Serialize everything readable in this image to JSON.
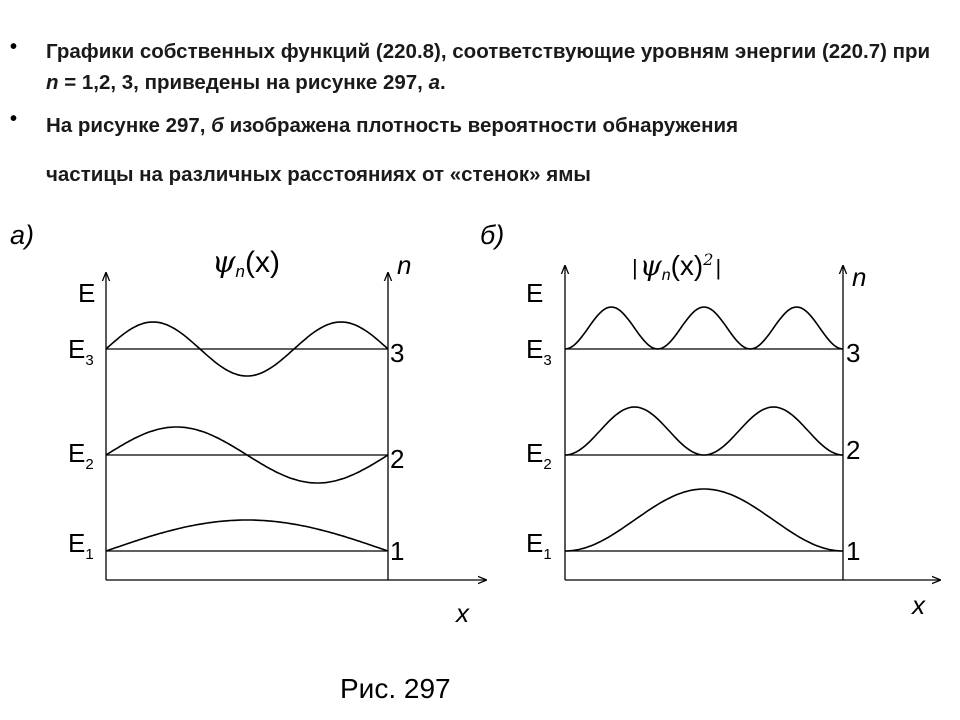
{
  "bullets": [
    {
      "p1": "Графики собственных функций (220.8), соответствующие уровням энергии (220.7) при ",
      "n": "n",
      "p2": " = 1,2, 3, приведены на рисунке 297, ",
      "em": "а",
      "p3": "."
    },
    {
      "p1": "На рисунке 297, ",
      "em": "б",
      "p2": " изображена плотность вероятности обнаружения",
      "line2": "частицы на различных расстояниях от «стенок» ямы"
    }
  ],
  "panel_a": {
    "label": "а)",
    "title_psi": "ψ",
    "title_sub": "n",
    "title_arg": "(x)",
    "e_axis": "E",
    "n_axis": "n",
    "x_axis": "x",
    "levels": [
      {
        "e": "E",
        "sub": "1",
        "n": "1"
      },
      {
        "e": "E",
        "sub": "2",
        "n": "2"
      },
      {
        "e": "E",
        "sub": "3",
        "n": "3"
      }
    ]
  },
  "panel_b": {
    "label": "б)",
    "title_bar1": "|",
    "title_psi": "ψ",
    "title_sub": "n",
    "title_arg": "(x)",
    "title_sup": "2",
    "title_bar2": "|",
    "e_axis": "E",
    "n_axis": "n",
    "x_axis": "x",
    "levels": [
      {
        "e": "E",
        "sub": "1",
        "n": "1"
      },
      {
        "e": "E",
        "sub": "2",
        "n": "2"
      },
      {
        "e": "E",
        "sub": "3",
        "n": "3"
      }
    ]
  },
  "caption": "Рис. 297"
}
